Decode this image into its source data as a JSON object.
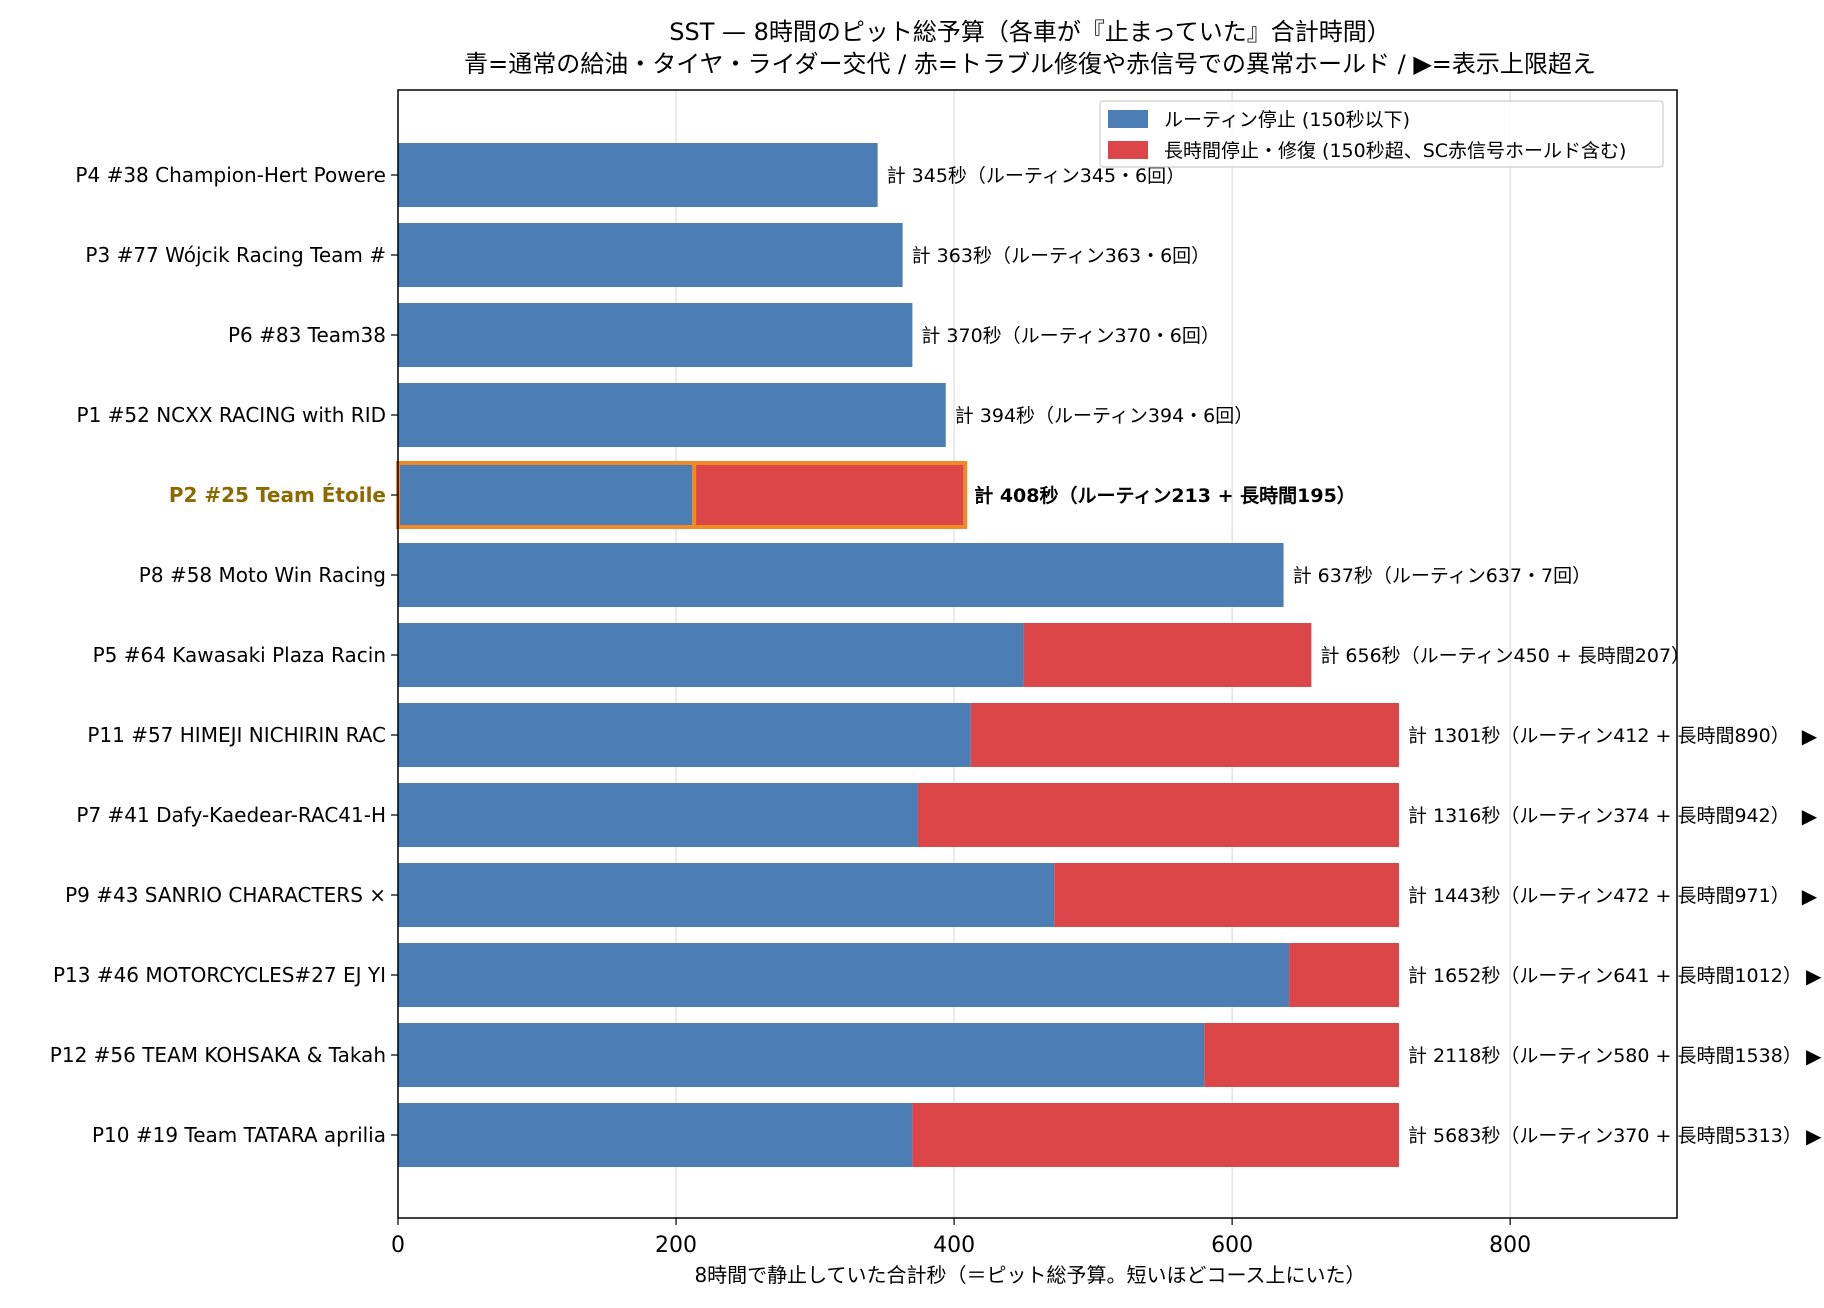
{
  "chart_data": {
    "type": "bar",
    "orientation": "horizontal",
    "stacked": true,
    "title": "SST — 8時間のピット総予算（各車が『止まっていた』合計時間）",
    "subtitle": "青=通常の給油・タイヤ・ライダー交代 / 赤=トラブル修復や赤信号での異常ホールド / ▶=表示上限超え",
    "xlabel": "8時間で静止していた合計秒（＝ピット総予算。短いほどコース上にいた）",
    "ylabel": "",
    "xlim": [
      0,
      920
    ],
    "display_cap": 720,
    "xticks": [
      0,
      200,
      400,
      600,
      800
    ],
    "grid": "x",
    "legend_position": "top-right",
    "highlight_category": "P2 #25 Team Étoile",
    "series": [
      {
        "name": "ルーティン停止 (150秒以下)",
        "color": "#4c7db5"
      },
      {
        "name": "長時間停止・修復 (150秒超、SC赤信号ホールド含む)",
        "color": "#dc4648"
      }
    ],
    "categories": [
      "P4 #38 Champion-Hert Powere",
      "P3 #77 Wójcik Racing Team #",
      "P6 #83 Team38",
      "P1 #52 NCXX RACING with RID",
      "P2 #25 Team Étoile",
      "P8 #58 Moto Win Racing",
      "P5 #64 Kawasaki Plaza Racin",
      "P11 #57 HIMEJI NICHIRIN  RAC",
      "P7 #41 Dafy-Kaedear-RAC41-H",
      "P9 #43 SANRIO CHARACTERS × ",
      "P13 #46 MOTORCYCLES#27 EJ YI",
      "P12 #56 TEAM KOHSAKA & Takah",
      "P10 #19 Team TATARA aprilia"
    ],
    "routine": [
      345,
      363,
      370,
      394,
      213,
      637,
      450,
      412,
      374,
      472,
      641,
      580,
      370
    ],
    "long": [
      0,
      0,
      0,
      0,
      195,
      0,
      207,
      890,
      942,
      971,
      1012,
      1538,
      5313
    ],
    "totals": [
      345,
      363,
      370,
      394,
      408,
      637,
      656,
      1301,
      1316,
      1443,
      1652,
      2118,
      5683
    ],
    "annotations": [
      "計 345秒（ルーティン345・6回）",
      "計 363秒（ルーティン363・6回）",
      "計 370秒（ルーティン370・6回）",
      "計 394秒（ルーティン394・6回）",
      "計 408秒（ルーティン213 + 長時間195）",
      "計 637秒（ルーティン637・7回）",
      "計 656秒（ルーティン450 + 長時間207）",
      "計 1301秒（ルーティン412 + 長時間890）",
      "計 1316秒（ルーティン374 + 長時間942）",
      "計 1443秒（ルーティン472 + 長時間971）",
      "計 1652秒（ルーティン641 + 長時間1012）",
      "計 2118秒（ルーティン580 + 長時間1538）",
      "計 5683秒（ルーティン370 + 長時間5313）"
    ],
    "overflow_marker": "▶"
  }
}
